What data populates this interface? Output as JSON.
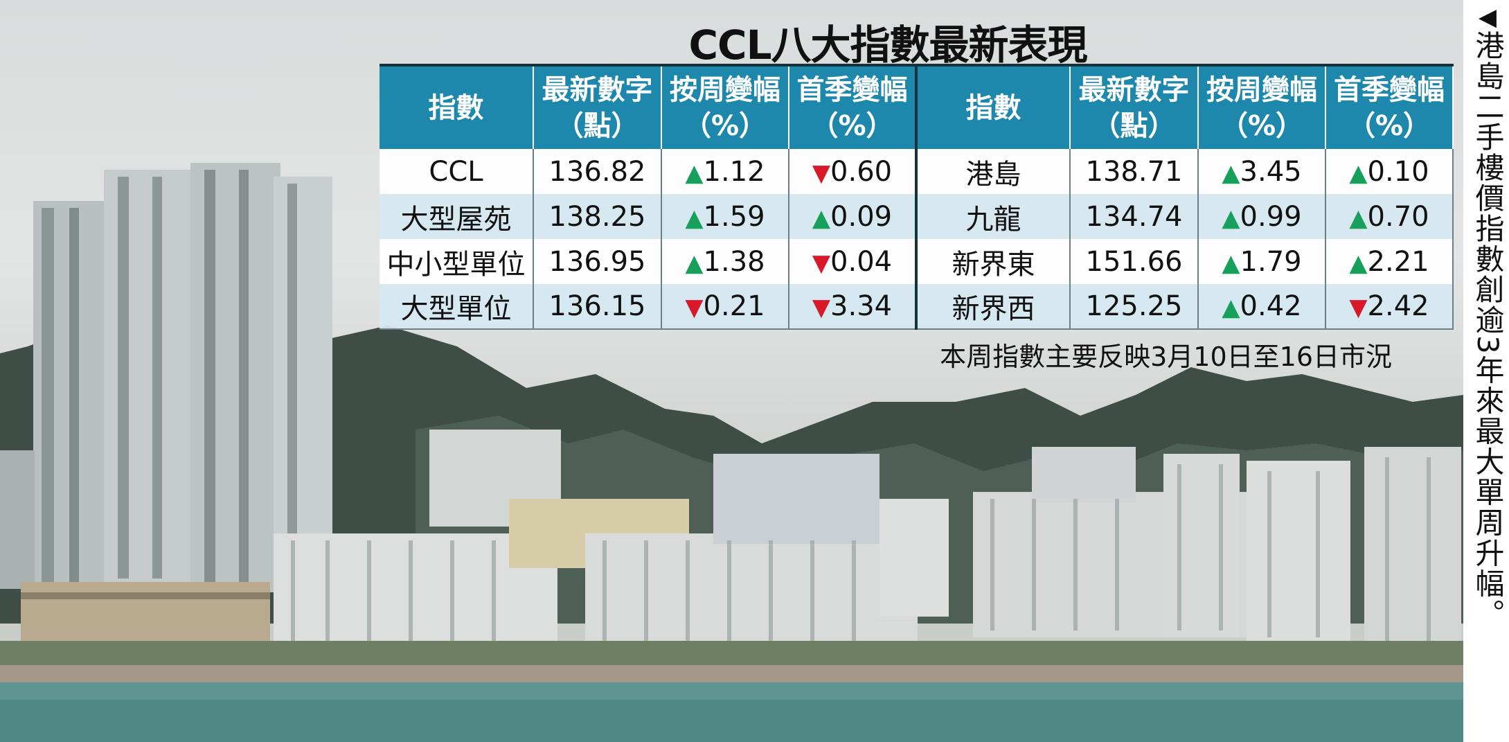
{
  "title": "CCL八大指數最新表現",
  "colors": {
    "header": "#1e88ac",
    "up": "#16a05c",
    "down": "#d9192a"
  },
  "table": {
    "headers": [
      "指數",
      "最新數字（點）",
      "按周變幅（%）",
      "首季變幅（%）",
      "指數",
      "最新數字（點）",
      "按周變幅（%）",
      "首季變幅（%）"
    ],
    "header_lines": [
      [
        "指數",
        ""
      ],
      [
        "最新數字",
        "（點）"
      ],
      [
        "按周變幅",
        "（%）"
      ],
      [
        "首季變幅",
        "（%）"
      ],
      [
        "指數",
        ""
      ],
      [
        "最新數字",
        "（點）"
      ],
      [
        "按周變幅",
        "（%）"
      ],
      [
        "首季變幅",
        "（%）"
      ]
    ],
    "rows": [
      [
        {
          "name": "CCL",
          "latest": "136.82",
          "weekly": {
            "dir": "up",
            "arrow": "▲",
            "value": "1.12"
          },
          "q1": {
            "dir": "down",
            "arrow": "▼",
            "value": "0.60"
          }
        },
        {
          "name": "港島",
          "latest": "138.71",
          "weekly": {
            "dir": "up",
            "arrow": "▲",
            "value": "3.45"
          },
          "q1": {
            "dir": "up",
            "arrow": "▲",
            "value": "0.10"
          }
        }
      ],
      [
        {
          "name": "大型屋苑",
          "latest": "138.25",
          "weekly": {
            "dir": "up",
            "arrow": "▲",
            "value": "1.59"
          },
          "q1": {
            "dir": "up",
            "arrow": "▲",
            "value": "0.09"
          }
        },
        {
          "name": "九龍",
          "latest": "134.74",
          "weekly": {
            "dir": "up",
            "arrow": "▲",
            "value": "0.99"
          },
          "q1": {
            "dir": "up",
            "arrow": "▲",
            "value": "0.70"
          }
        }
      ],
      [
        {
          "name": "中小型單位",
          "latest": "136.95",
          "weekly": {
            "dir": "up",
            "arrow": "▲",
            "value": "1.38"
          },
          "q1": {
            "dir": "down",
            "arrow": "▼",
            "value": "0.04"
          }
        },
        {
          "name": "新界東",
          "latest": "151.66",
          "weekly": {
            "dir": "up",
            "arrow": "▲",
            "value": "1.79"
          },
          "q1": {
            "dir": "up",
            "arrow": "▲",
            "value": "2.21"
          }
        }
      ],
      [
        {
          "name": "大型單位",
          "latest": "136.15",
          "weekly": {
            "dir": "down",
            "arrow": "▼",
            "value": "0.21"
          },
          "q1": {
            "dir": "down",
            "arrow": "▼",
            "value": "3.34"
          }
        },
        {
          "name": "新界西",
          "latest": "125.25",
          "weekly": {
            "dir": "up",
            "arrow": "▲",
            "value": "0.42"
          },
          "q1": {
            "dir": "down",
            "arrow": "▼",
            "value": "2.42"
          }
        }
      ]
    ]
  },
  "note": "本周指數主要反映3月10日至16日市況",
  "caption": {
    "arrow": "◀",
    "text": "港島二手樓價指數創逾3年來最大單周升幅。"
  },
  "photo": {
    "icon": "city-skyline-photo"
  }
}
